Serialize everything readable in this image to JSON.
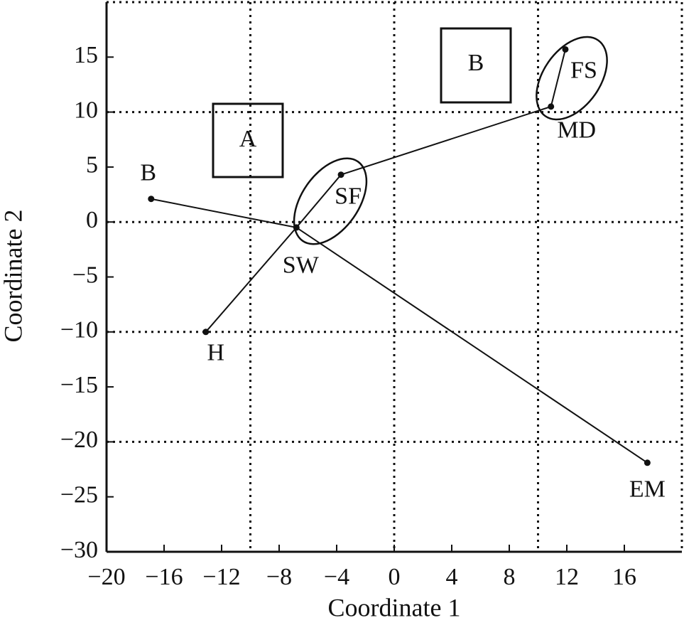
{
  "chart_data": {
    "type": "scatter",
    "xlabel": "Coordinate 1",
    "ylabel": "Coordinate 2",
    "xlim": [
      -20,
      20
    ],
    "ylim": [
      -30,
      20
    ],
    "xticks": [
      {
        "value": -20,
        "label": "−20"
      },
      {
        "value": -16,
        "label": "−16"
      },
      {
        "value": -12,
        "label": "−12"
      },
      {
        "value": -8,
        "label": "−8"
      },
      {
        "value": -4,
        "label": "−4"
      },
      0,
      4,
      8,
      12,
      16
    ],
    "yticks": [
      {
        "value": -30,
        "label": "−30"
      },
      {
        "value": -25,
        "label": "−25"
      },
      {
        "value": -20,
        "label": "−20"
      },
      {
        "value": -15,
        "label": "−15"
      },
      {
        "value": -10,
        "label": "−10"
      },
      {
        "value": -5,
        "label": "−5"
      },
      0,
      5,
      10,
      15
    ],
    "grid_x": [
      -10,
      0,
      10
    ],
    "grid_y": [
      -20,
      -10,
      0,
      10
    ],
    "color": "#111111",
    "points": [
      {
        "label": "B",
        "x": -16.9,
        "y": 2.1
      },
      {
        "label": "SW",
        "x": -6.8,
        "y": -0.5
      },
      {
        "label": "H",
        "x": -13.1,
        "y": -10
      },
      {
        "label": "SF",
        "x": -3.7,
        "y": 4.3
      },
      {
        "label": "MD",
        "x": 10.9,
        "y": 10.5
      },
      {
        "label": "FS",
        "x": 11.9,
        "y": 15.7
      },
      {
        "label": "EM",
        "x": 17.6,
        "y": -21.9
      }
    ],
    "edges": [
      [
        0,
        1
      ],
      [
        1,
        6
      ],
      [
        2,
        1
      ],
      [
        1,
        3
      ],
      [
        3,
        4
      ],
      [
        4,
        5
      ]
    ],
    "annotations": [
      "A",
      "B"
    ]
  }
}
